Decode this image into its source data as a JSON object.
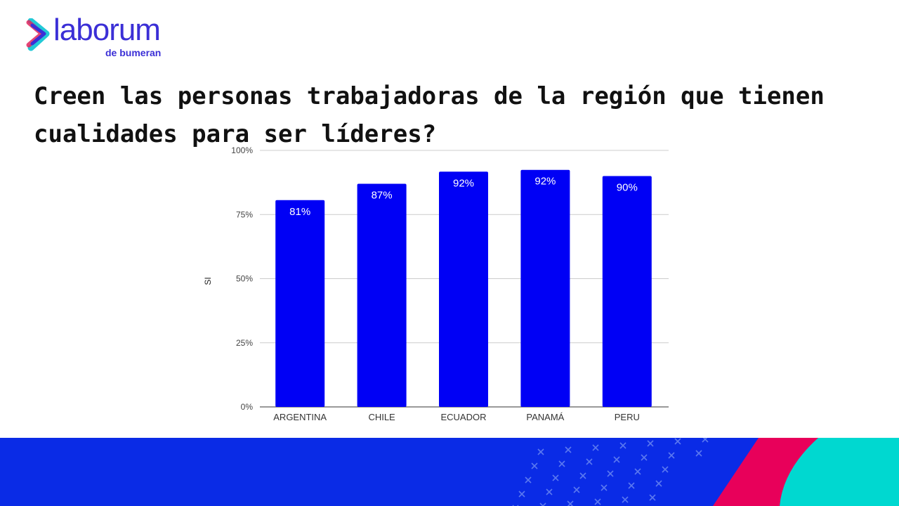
{
  "logo": {
    "name": "laborum",
    "sub": "de bumeran"
  },
  "title": "Creen las personas trabajadoras de la región que tienen cualidades para ser líderes?",
  "colors": {
    "bar": "#0000f5",
    "brand_blue": "#0a2be6",
    "pink": "#e8005a",
    "teal": "#00d8d0"
  },
  "chart_data": {
    "type": "bar",
    "title": "",
    "xlabel": "",
    "ylabel": "SI",
    "ylim": [
      0,
      100
    ],
    "yticks": [
      "0%",
      "25%",
      "50%",
      "75%",
      "100%"
    ],
    "grid": true,
    "categories": [
      "ARGENTINA",
      "CHILE",
      "ECUADOR",
      "PANAMÁ",
      "PERU"
    ],
    "values": [
      80.6,
      87,
      91.7,
      92.4,
      90
    ],
    "labels": [
      "81%",
      "87%",
      "92%",
      "92%",
      "90%"
    ]
  }
}
